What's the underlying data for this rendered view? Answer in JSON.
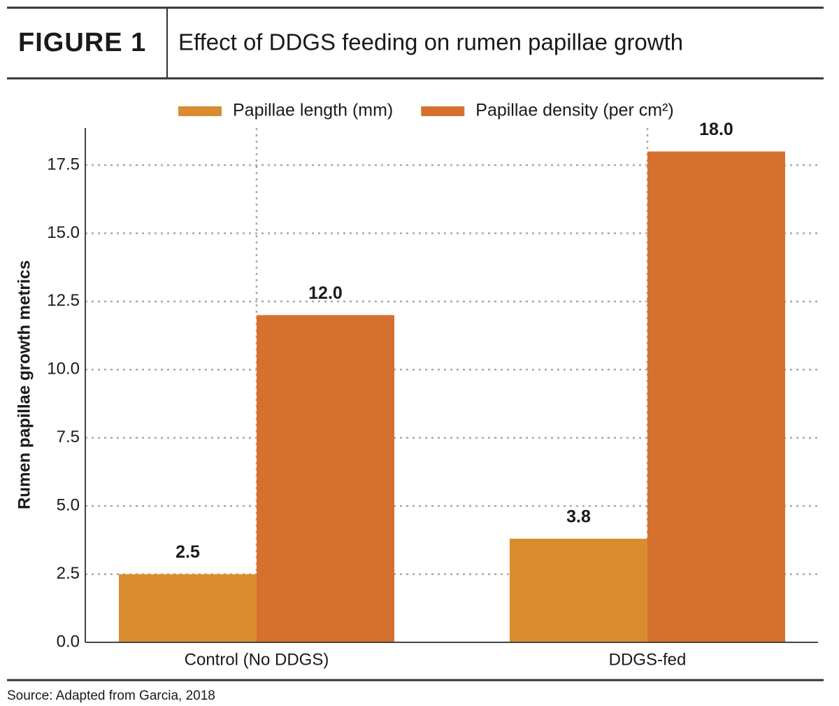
{
  "chart_data": {
    "type": "bar",
    "figure_label": "FIGURE 1",
    "title": "Effect of DDGS feeding on rumen papillae growth",
    "y_label": "Rumen papillae growth metrics",
    "source": "Source: Adapted from Garcia, 2018",
    "categories": [
      "Control (No DDGS)",
      "DDGS-fed"
    ],
    "series": [
      {
        "name": "Papillae length (mm)",
        "color": "#d98c2e",
        "values": [
          2.5,
          3.8
        ],
        "value_labels": [
          "2.5",
          "3.8"
        ]
      },
      {
        "name": "Papillae density (per cm²)",
        "color": "#d6702e",
        "values": [
          12,
          18
        ],
        "value_labels": [
          "12.0",
          "18.0"
        ]
      }
    ],
    "ylim": [
      0,
      18.86
    ],
    "yticks": [
      {
        "value": 0,
        "label": "0.0"
      },
      2.5,
      {
        "value": 5,
        "label": "5.0"
      },
      7.5,
      {
        "value": 10,
        "label": "10.0"
      },
      12.5,
      {
        "value": 15,
        "label": "15.0"
      },
      17.5
    ],
    "grid": true,
    "legend": "top"
  }
}
